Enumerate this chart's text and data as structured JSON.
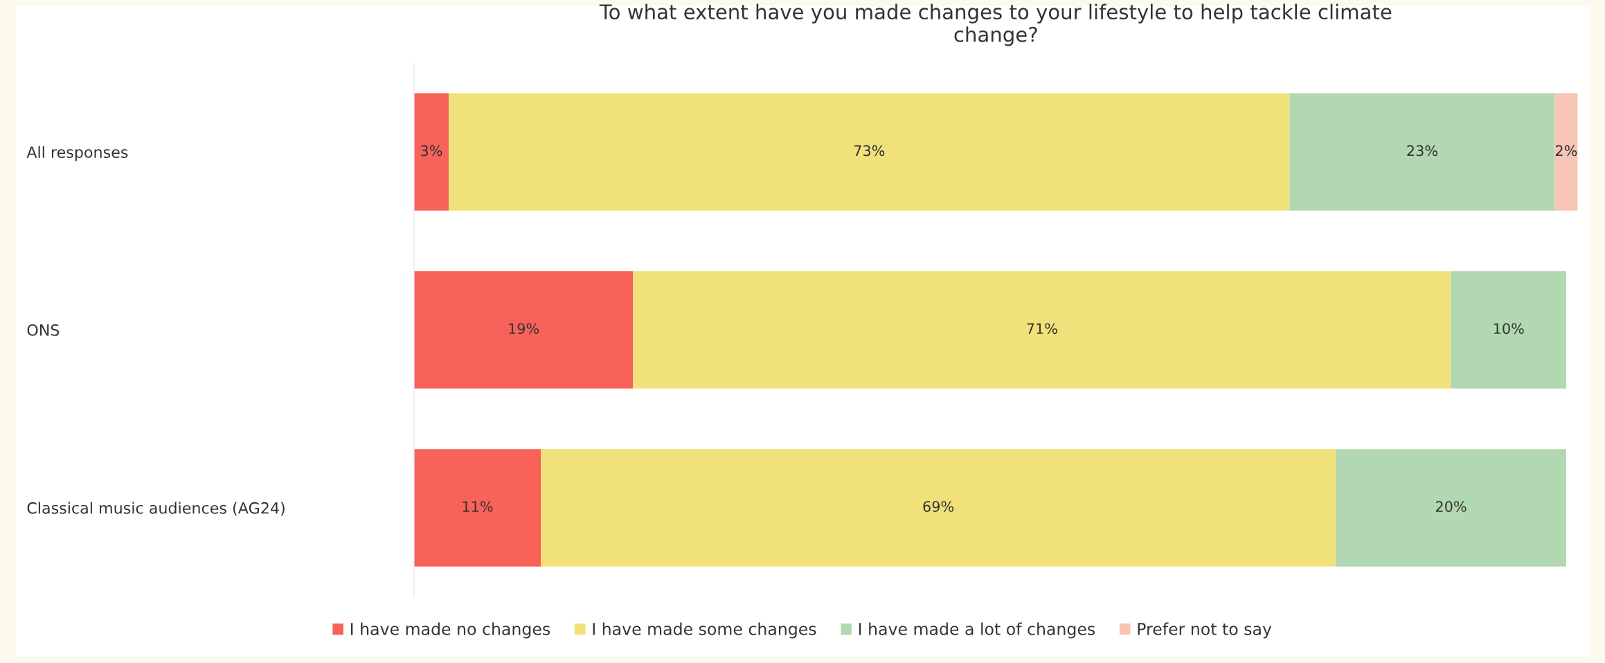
{
  "chart_data": {
    "type": "bar",
    "orientation": "horizontal",
    "stacked": true,
    "legend": "bottom",
    "grid": false,
    "title": "To what extent have you made changes to your lifestyle to help tackle climate\nchange?",
    "categories": [
      "All responses",
      "ONS",
      "Classical music audiences (AG24)"
    ],
    "series": [
      {
        "name": "I have made no changes",
        "color": "#f8625a",
        "values": [
          3,
          19,
          11
        ],
        "value_labels": [
          "3%",
          "19%",
          "11%"
        ]
      },
      {
        "name": "I have made some changes",
        "color": "#f0e17a",
        "values": [
          73,
          71,
          69
        ],
        "value_labels": [
          "73%",
          "71%",
          "69%"
        ]
      },
      {
        "name": "I have made a lot of changes",
        "color": "#b2d8b2",
        "values": [
          23,
          10,
          20
        ],
        "value_labels": [
          "23%",
          "10%",
          "20%"
        ]
      },
      {
        "name": "Prefer not to say",
        "color": "#f8c4b4",
        "values": [
          2,
          null,
          null
        ],
        "value_labels": [
          "2%",
          null,
          null
        ]
      }
    ]
  }
}
